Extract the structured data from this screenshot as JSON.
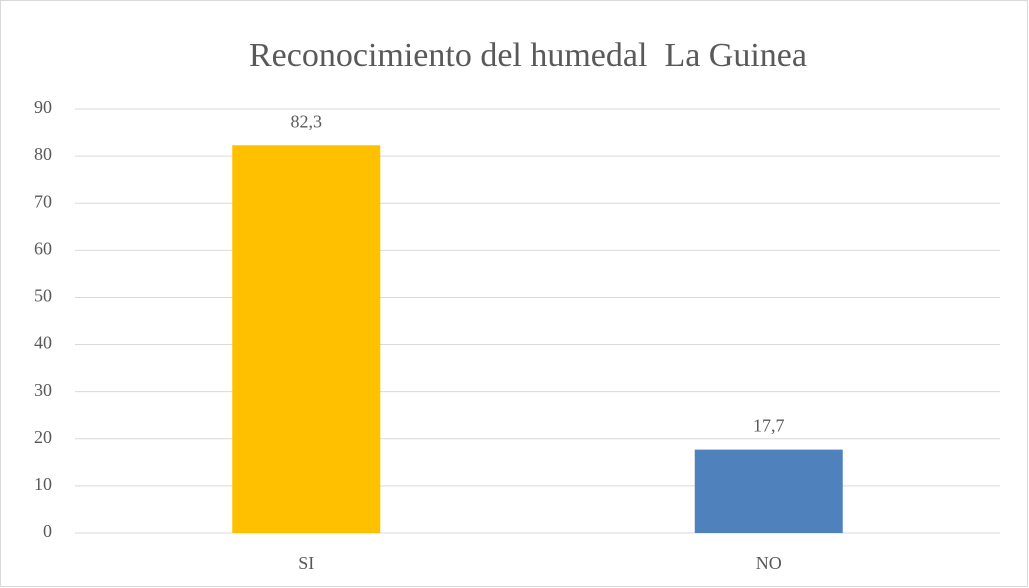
{
  "chart_data": {
    "type": "bar",
    "title": "Reconocimiento del humedal  La Guinea",
    "categories": [
      "SI",
      "NO"
    ],
    "values": [
      82.3,
      17.7
    ],
    "value_labels": [
      "82,3",
      "17,7"
    ],
    "colors": [
      "#FFC000",
      "#4F81BD"
    ],
    "ylim": [
      0,
      90
    ],
    "yticks": [
      0,
      10,
      20,
      30,
      40,
      50,
      60,
      70,
      80,
      90
    ],
    "grid": true
  }
}
